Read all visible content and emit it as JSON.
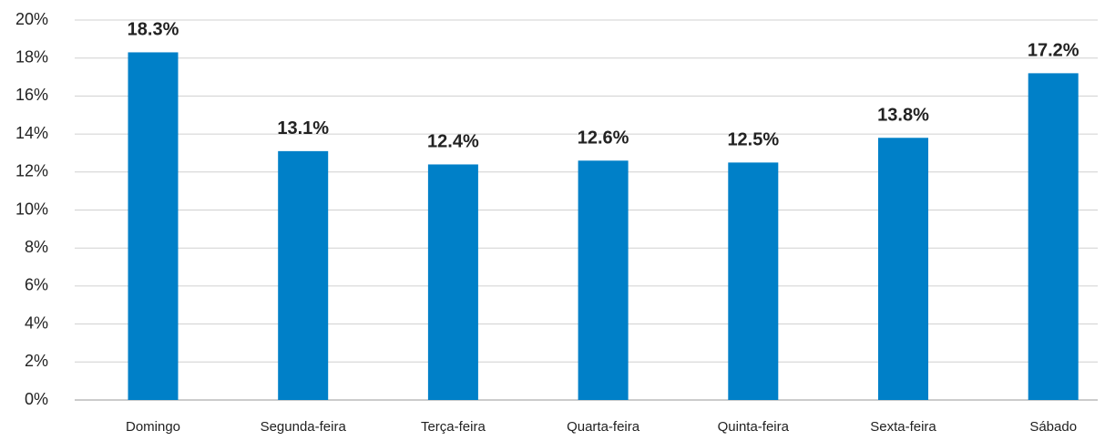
{
  "chart_data": {
    "type": "bar",
    "categories": [
      "Domingo",
      "Segunda-feira",
      "Terça-feira",
      "Quarta-feira",
      "Quinta-feira",
      "Sexta-feira",
      "Sábado"
    ],
    "values": [
      18.3,
      13.1,
      12.4,
      12.6,
      12.5,
      13.8,
      17.2
    ],
    "value_labels": [
      "18.3%",
      "13.1%",
      "12.4%",
      "12.6%",
      "12.5%",
      "13.8%",
      "17.2%"
    ],
    "color": "#0080c8",
    "ylim": [
      0,
      20
    ],
    "yticks": [
      {
        "value": 0,
        "label": "0%"
      },
      {
        "value": 2,
        "label": "2%"
      },
      {
        "value": 4,
        "label": "4%"
      },
      {
        "value": 6,
        "label": "6%"
      },
      {
        "value": 8,
        "label": "8%"
      },
      {
        "value": 10,
        "label": "10%"
      },
      {
        "value": 12,
        "label": "12%"
      },
      {
        "value": 14,
        "label": "14%"
      },
      {
        "value": 16,
        "label": "16%"
      },
      {
        "value": 18,
        "label": "18%"
      },
      {
        "value": 20,
        "label": "20%"
      }
    ],
    "grid": true
  }
}
